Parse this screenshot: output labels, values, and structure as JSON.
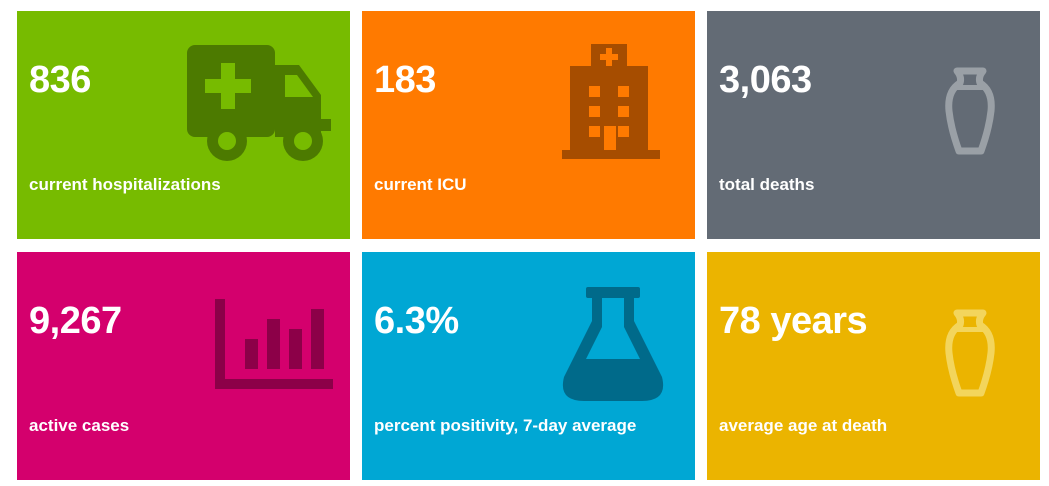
{
  "tiles": [
    {
      "value": "836",
      "label": "current hospitalizations",
      "icon": "ambulance-icon",
      "background": "#77bb00",
      "icon_color": "#4c7a00"
    },
    {
      "value": "183",
      "label": "current ICU",
      "icon": "hospital-building-icon",
      "background": "#ff7a00",
      "icon_color": "#a64d00"
    },
    {
      "value": "3,063",
      "label": "total deaths",
      "icon": "urn-icon",
      "background": "#636b75",
      "icon_color": "#9aa0a6"
    },
    {
      "value": "9,267",
      "label": "active cases",
      "icon": "bar-chart-icon",
      "background": "#d4006d",
      "icon_color": "#8c0048"
    },
    {
      "value": "6.3%",
      "label": "percent positivity, 7-day average",
      "icon": "flask-icon",
      "background": "#00a7d4",
      "icon_color": "#006a8a"
    },
    {
      "value": "78 years",
      "label": "average age at death",
      "icon": "urn-icon",
      "background": "#ebb400",
      "icon_color": "#f3d55c"
    }
  ]
}
